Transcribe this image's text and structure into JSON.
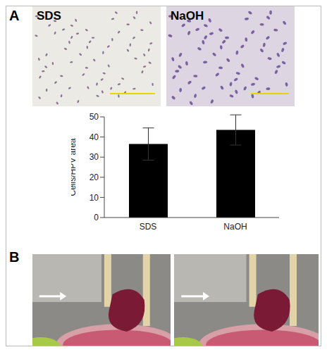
{
  "panels": {
    "A": {
      "label": "A",
      "image_labels": [
        "SDS",
        "NaOH"
      ]
    },
    "B": {
      "label": "B"
    }
  },
  "chart_data": {
    "type": "bar",
    "categories": [
      "SDS",
      "NaOH"
    ],
    "values": [
      36.5,
      43.5
    ],
    "errors": [
      8,
      7.5
    ],
    "color": "#000000",
    "ylabel": "Cells/HPV area",
    "ylim": [
      0,
      50
    ],
    "yticks": [
      0,
      10,
      20,
      30,
      40,
      50
    ],
    "grid": false
  }
}
